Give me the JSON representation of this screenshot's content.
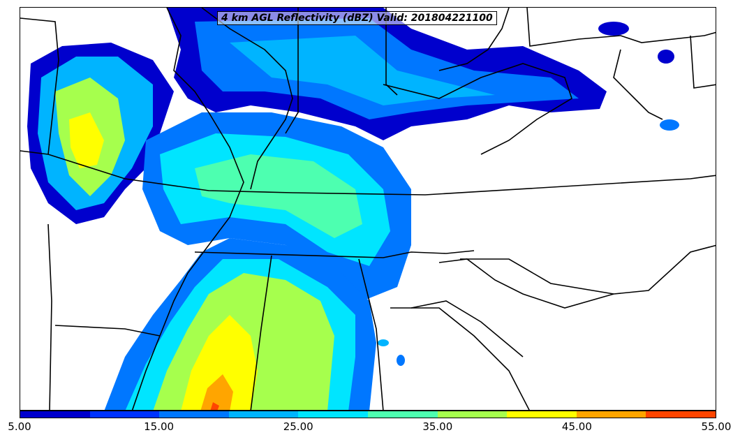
{
  "title": "4 km AGL Reflectivity (dBZ) Valid: 201804221100",
  "colorbar": {
    "colors": [
      "#0000cd",
      "#0033ff",
      "#0077ff",
      "#00b4ff",
      "#00e5ff",
      "#4dffb0",
      "#a6ff4d",
      "#ffff00",
      "#ffa500",
      "#ff4500",
      "#c80000"
    ],
    "labels": [
      "5.00",
      "15.00",
      "25.00",
      "35.00",
      "45.00",
      "55.00"
    ]
  },
  "legend_levels": {
    "low": "#0000cd",
    "blue": "#0077ff",
    "cyan": "#00e5ff",
    "green": "#a6ff4d",
    "yellow": "#ffff00",
    "orange": "#ffa500",
    "red": "#ff4500"
  }
}
